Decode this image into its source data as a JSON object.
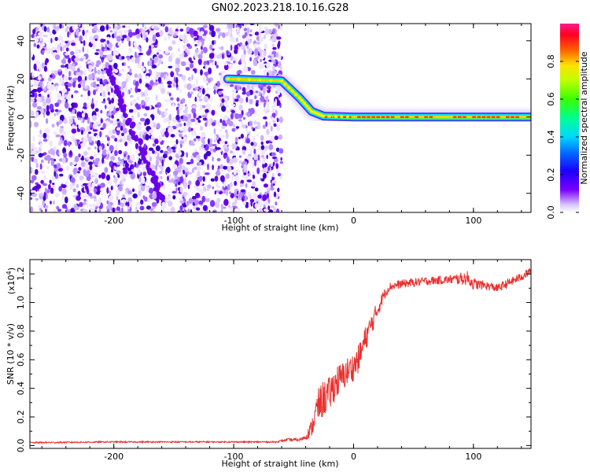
{
  "title": "GN02.2023.218.10.16.G28",
  "colors": {
    "snr_line": "#e8312f",
    "track_blob": "#6a00e8"
  },
  "chart_data": [
    {
      "type": "heatmap",
      "title": "GN02.2023.218.10.16.G28",
      "xlabel": "Height of straight line (km)",
      "ylabel": "Frequency (Hz)",
      "xlim": [
        -270,
        148
      ],
      "ylim": [
        -50,
        49
      ],
      "xticks": [
        -200,
        -100,
        0,
        100
      ],
      "yticks": [
        -40,
        -20,
        0,
        20,
        40
      ],
      "noise_region_x": [
        -270,
        -60
      ],
      "diagonal_track": {
        "x": [
          -205,
          -160
        ],
        "y": [
          25,
          -43
        ]
      },
      "signal_track": {
        "x": [
          -105,
          -60,
          -45,
          -35,
          -25,
          0,
          50,
          100,
          148
        ],
        "y": [
          20,
          19,
          10,
          3,
          0.5,
          0,
          0,
          0,
          0
        ]
      },
      "colorbar": {
        "label": "Normalized spectral amplitude",
        "range": [
          0,
          1
        ],
        "ticks": [
          "0.0",
          "0.2",
          "0.4",
          "0.6",
          "0.8"
        ],
        "tick_values": [
          0,
          0.2,
          0.4,
          0.6,
          0.8
        ],
        "colormap": "rainbow"
      }
    },
    {
      "type": "line",
      "xlabel": "Height of straight line (km)",
      "ylabel": "SNR (10 * v/v)",
      "y_multiplier_label": "(x10",
      "y_multiplier_exp": "4",
      "y_multiplier_close": ")",
      "xlim": [
        -270,
        148
      ],
      "ylim": [
        -0.02,
        1.3
      ],
      "xticks": [
        -200,
        -100,
        0,
        100
      ],
      "yticks": [
        "0.0",
        "0.2",
        "0.4",
        "0.6",
        "0.8",
        "1.0",
        "1.2"
      ],
      "ytick_values": [
        0,
        0.2,
        0.4,
        0.6,
        0.8,
        1.0,
        1.2
      ],
      "series": [
        {
          "x": [
            -270,
            -200,
            -100,
            -65,
            -55,
            -45,
            -40,
            -35,
            -30,
            -25,
            -20,
            -15,
            -10,
            -5,
            0,
            5,
            10,
            15,
            20,
            25,
            30,
            40,
            60,
            80,
            95,
            100,
            110,
            120,
            130,
            140,
            148
          ],
          "values": [
            0.02,
            0.025,
            0.025,
            0.025,
            0.04,
            0.04,
            0.06,
            0.12,
            0.27,
            0.33,
            0.36,
            0.44,
            0.47,
            0.52,
            0.55,
            0.62,
            0.75,
            0.85,
            0.95,
            1.05,
            1.11,
            1.13,
            1.15,
            1.16,
            1.17,
            1.13,
            1.12,
            1.1,
            1.14,
            1.18,
            1.22
          ],
          "noise": [
            0.005,
            0.005,
            0.005,
            0.005,
            0.01,
            0.01,
            0.02,
            0.06,
            0.12,
            0.13,
            0.12,
            0.12,
            0.11,
            0.1,
            0.1,
            0.1,
            0.09,
            0.08,
            0.06,
            0.04,
            0.03,
            0.03,
            0.03,
            0.03,
            0.05,
            0.04,
            0.03,
            0.03,
            0.03,
            0.03,
            0.03
          ]
        }
      ]
    }
  ]
}
